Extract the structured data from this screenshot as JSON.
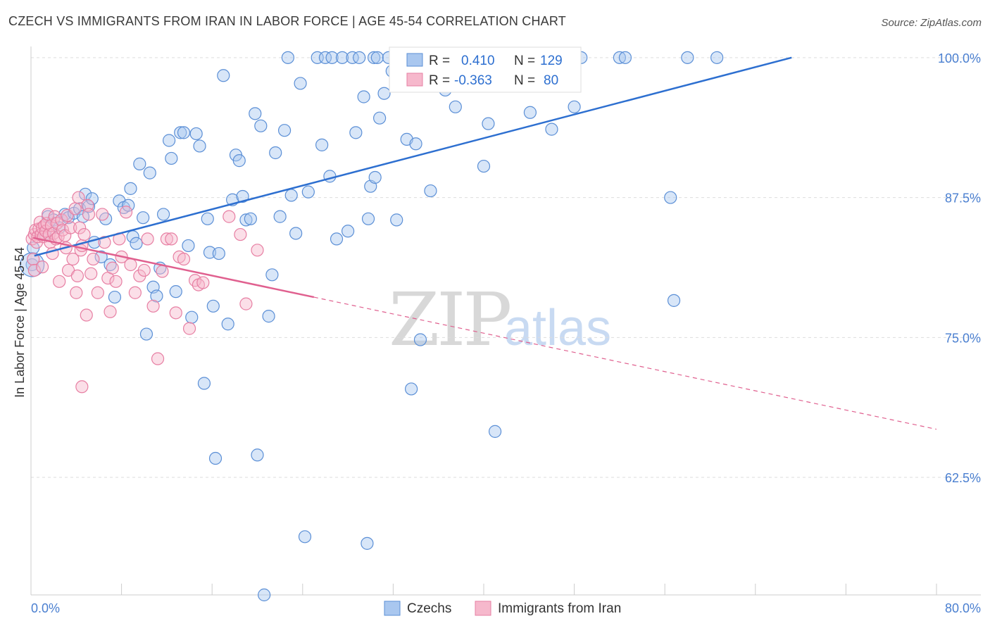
{
  "title": "CZECH VS IMMIGRANTS FROM IRAN IN LABOR FORCE | AGE 45-54 CORRELATION CHART",
  "source": "Source: ZipAtlas.com",
  "watermark": {
    "zip": "ZIP",
    "atlas": "atlas"
  },
  "colors": {
    "czech_fill": "#a9c7ef",
    "czech_stroke": "#5b8fd6",
    "czech_line": "#2d6fd0",
    "iran_fill": "#f6b8cc",
    "iran_stroke": "#e77fa3",
    "iran_line": "#e0608f",
    "axis_text": "#4a7fd0",
    "grid": "#dddddd"
  },
  "stats": {
    "czech": {
      "r_label": "R =",
      "r": "0.410",
      "n_label": "N =",
      "n": "129"
    },
    "iran": {
      "r_label": "R =",
      "r": "-0.363",
      "n_label": "N =",
      "n": "80"
    }
  },
  "legend": {
    "czech": "Czechs",
    "iran": "Immigrants from Iran"
  },
  "chart_data": {
    "type": "scatter",
    "title": "CZECH VS IMMIGRANTS FROM IRAN IN LABOR FORCE | AGE 45-54 CORRELATION CHART",
    "xlabel": "",
    "ylabel": "In Labor Force | Age 45-54",
    "xlim": [
      0,
      80
    ],
    "ylim": [
      52,
      101.5
    ],
    "x_tick_labels": [
      "0.0%",
      "80.0%"
    ],
    "y_ticks": [
      62.5,
      75.0,
      87.5,
      100.0
    ],
    "y_tick_labels": [
      "62.5%",
      "75.0%",
      "87.5%",
      "100.0%"
    ],
    "grid": true,
    "legend_position": "bottom",
    "series": [
      {
        "name": "Czechs",
        "trend": {
          "x": [
            0.3,
            67.2
          ],
          "y": [
            82.3,
            100.0
          ],
          "style": "solid"
        },
        "points": [
          [
            0.1,
            81.5
          ],
          [
            0.2,
            83.0
          ],
          [
            1.2,
            84.2
          ],
          [
            1.5,
            85.8
          ],
          [
            2.0,
            85.5
          ],
          [
            2.5,
            84.8
          ],
          [
            3.0,
            86.0
          ],
          [
            3.3,
            85.7
          ],
          [
            3.8,
            86.1
          ],
          [
            4.3,
            86.5
          ],
          [
            4.6,
            85.8
          ],
          [
            4.8,
            87.8
          ],
          [
            5.1,
            86.7
          ],
          [
            5.4,
            87.4
          ],
          [
            5.6,
            83.5
          ],
          [
            6.2,
            82.2
          ],
          [
            6.6,
            85.6
          ],
          [
            7.0,
            81.5
          ],
          [
            7.4,
            78.6
          ],
          [
            7.8,
            87.2
          ],
          [
            8.2,
            86.6
          ],
          [
            8.6,
            86.8
          ],
          [
            8.8,
            88.3
          ],
          [
            9.0,
            84.0
          ],
          [
            9.3,
            83.4
          ],
          [
            9.6,
            90.5
          ],
          [
            9.9,
            85.7
          ],
          [
            10.2,
            75.3
          ],
          [
            10.5,
            89.7
          ],
          [
            10.8,
            79.5
          ],
          [
            11.1,
            78.7
          ],
          [
            11.4,
            81.2
          ],
          [
            11.7,
            86.0
          ],
          [
            12.2,
            92.6
          ],
          [
            12.4,
            91.0
          ],
          [
            12.8,
            79.1
          ],
          [
            13.2,
            93.3
          ],
          [
            13.5,
            93.3
          ],
          [
            13.9,
            83.2
          ],
          [
            14.2,
            76.8
          ],
          [
            14.6,
            93.2
          ],
          [
            14.9,
            92.1
          ],
          [
            15.3,
            70.9
          ],
          [
            15.6,
            85.6
          ],
          [
            15.8,
            82.6
          ],
          [
            16.1,
            77.8
          ],
          [
            16.3,
            64.2
          ],
          [
            16.6,
            82.5
          ],
          [
            17.0,
            98.4
          ],
          [
            17.4,
            76.2
          ],
          [
            17.8,
            87.3
          ],
          [
            18.1,
            91.3
          ],
          [
            18.4,
            90.8
          ],
          [
            18.7,
            87.6
          ],
          [
            19.0,
            85.5
          ],
          [
            19.4,
            85.6
          ],
          [
            19.8,
            95.0
          ],
          [
            20.0,
            64.5
          ],
          [
            20.3,
            93.9
          ],
          [
            20.6,
            52.0
          ],
          [
            21.0,
            76.9
          ],
          [
            21.3,
            80.6
          ],
          [
            21.6,
            91.5
          ],
          [
            22.0,
            85.8
          ],
          [
            22.4,
            93.5
          ],
          [
            22.7,
            100.0
          ],
          [
            23.0,
            87.7
          ],
          [
            23.4,
            84.3
          ],
          [
            23.8,
            97.7
          ],
          [
            24.2,
            57.2
          ],
          [
            24.5,
            88.0
          ],
          [
            25.3,
            100.0
          ],
          [
            25.7,
            92.2
          ],
          [
            26.0,
            100.0
          ],
          [
            26.4,
            89.4
          ],
          [
            26.6,
            100.0
          ],
          [
            27.0,
            83.8
          ],
          [
            27.5,
            100.0
          ],
          [
            28.0,
            84.5
          ],
          [
            28.4,
            100.0
          ],
          [
            28.7,
            93.3
          ],
          [
            29.0,
            100.0
          ],
          [
            29.4,
            96.5
          ],
          [
            29.8,
            85.6
          ],
          [
            30.3,
            100.0
          ],
          [
            30.6,
            100.0
          ],
          [
            29.7,
            56.6
          ],
          [
            30.0,
            88.5
          ],
          [
            30.4,
            89.3
          ],
          [
            30.8,
            94.6
          ],
          [
            31.2,
            96.8
          ],
          [
            31.6,
            100.0
          ],
          [
            31.9,
            98.8
          ],
          [
            32.3,
            85.5
          ],
          [
            32.8,
            100.0
          ],
          [
            33.2,
            92.7
          ],
          [
            33.6,
            70.4
          ],
          [
            34.0,
            92.3
          ],
          [
            34.4,
            74.8
          ],
          [
            35.0,
            100.0
          ],
          [
            35.3,
            88.1
          ],
          [
            35.8,
            100.0
          ],
          [
            36.2,
            100.0
          ],
          [
            36.6,
            97.1
          ],
          [
            37.0,
            100.0
          ],
          [
            37.5,
            95.6
          ],
          [
            38.0,
            100.0
          ],
          [
            38.5,
            100.0
          ],
          [
            39.0,
            100.0
          ],
          [
            39.5,
            100.0
          ],
          [
            40.0,
            90.3
          ],
          [
            40.4,
            94.1
          ],
          [
            41.0,
            66.6
          ],
          [
            41.6,
            100.0
          ],
          [
            42.0,
            100.0
          ],
          [
            42.6,
            100.0
          ],
          [
            43.1,
            100.0
          ],
          [
            44.1,
            95.1
          ],
          [
            45.0,
            100.0
          ],
          [
            45.6,
            97.5
          ],
          [
            46.0,
            93.6
          ],
          [
            48.0,
            95.6
          ],
          [
            48.6,
            100.0
          ],
          [
            52.0,
            100.0
          ],
          [
            52.5,
            100.0
          ],
          [
            56.5,
            87.5
          ],
          [
            58.0,
            100.0
          ],
          [
            56.8,
            78.3
          ],
          [
            60.6,
            100.0
          ]
        ]
      },
      {
        "name": "Immigrants from Iran",
        "trend": {
          "x": [
            0.2,
            25.0
          ],
          "y": [
            83.9,
            78.6
          ],
          "style": "solid"
        },
        "trend_extension": {
          "x": [
            25.0,
            80.0
          ],
          "y": [
            78.6,
            66.8
          ],
          "style": "dashed"
        },
        "points": [
          [
            0.1,
            83.8
          ],
          [
            0.2,
            82.0
          ],
          [
            0.3,
            84.2
          ],
          [
            0.4,
            84.6
          ],
          [
            0.5,
            83.5
          ],
          [
            0.6,
            84.0
          ],
          [
            0.7,
            84.7
          ],
          [
            0.8,
            85.3
          ],
          [
            0.9,
            84.2
          ],
          [
            1.0,
            84.8
          ],
          [
            1.1,
            84.0
          ],
          [
            1.2,
            85.0
          ],
          [
            1.3,
            84.5
          ],
          [
            1.4,
            85.2
          ],
          [
            1.5,
            86.0
          ],
          [
            1.6,
            84.2
          ],
          [
            1.7,
            83.5
          ],
          [
            1.8,
            85.0
          ],
          [
            1.9,
            82.5
          ],
          [
            2.0,
            84.3
          ],
          [
            2.1,
            85.8
          ],
          [
            2.2,
            83.8
          ],
          [
            2.3,
            85.2
          ],
          [
            2.4,
            84.0
          ],
          [
            2.5,
            80.0
          ],
          [
            2.7,
            85.5
          ],
          [
            2.8,
            84.6
          ],
          [
            3.0,
            84.1
          ],
          [
            3.1,
            83.0
          ],
          [
            3.2,
            85.9
          ],
          [
            3.3,
            81.0
          ],
          [
            3.5,
            84.8
          ],
          [
            3.7,
            82.0
          ],
          [
            3.9,
            86.5
          ],
          [
            4.0,
            79.0
          ],
          [
            4.1,
            80.5
          ],
          [
            4.2,
            87.5
          ],
          [
            4.3,
            84.8
          ],
          [
            4.4,
            82.8
          ],
          [
            4.5,
            83.2
          ],
          [
            4.7,
            84.2
          ],
          [
            4.9,
            77.0
          ],
          [
            5.0,
            86.8
          ],
          [
            5.1,
            86.0
          ],
          [
            5.3,
            80.7
          ],
          [
            5.5,
            82.0
          ],
          [
            5.9,
            79.0
          ],
          [
            6.3,
            86.0
          ],
          [
            6.5,
            83.5
          ],
          [
            6.8,
            80.3
          ],
          [
            7.0,
            77.3
          ],
          [
            7.2,
            81.2
          ],
          [
            7.5,
            80.0
          ],
          [
            7.8,
            83.8
          ],
          [
            8.0,
            82.2
          ],
          [
            8.4,
            86.2
          ],
          [
            8.8,
            81.5
          ],
          [
            9.2,
            79.0
          ],
          [
            9.6,
            80.5
          ],
          [
            10.0,
            81.0
          ],
          [
            10.3,
            83.8
          ],
          [
            10.8,
            77.8
          ],
          [
            11.2,
            73.1
          ],
          [
            11.6,
            80.9
          ],
          [
            12.0,
            83.8
          ],
          [
            12.4,
            83.8
          ],
          [
            12.8,
            77.2
          ],
          [
            13.1,
            82.2
          ],
          [
            13.5,
            82.0
          ],
          [
            14.0,
            75.8
          ],
          [
            14.5,
            80.1
          ],
          [
            14.8,
            79.7
          ],
          [
            15.2,
            79.9
          ],
          [
            17.5,
            85.8
          ],
          [
            18.5,
            84.2
          ],
          [
            19.0,
            78.0
          ],
          [
            20.0,
            82.8
          ],
          [
            0.3,
            81.0
          ],
          [
            1.0,
            81.3
          ],
          [
            4.5,
            70.6
          ]
        ]
      }
    ]
  }
}
